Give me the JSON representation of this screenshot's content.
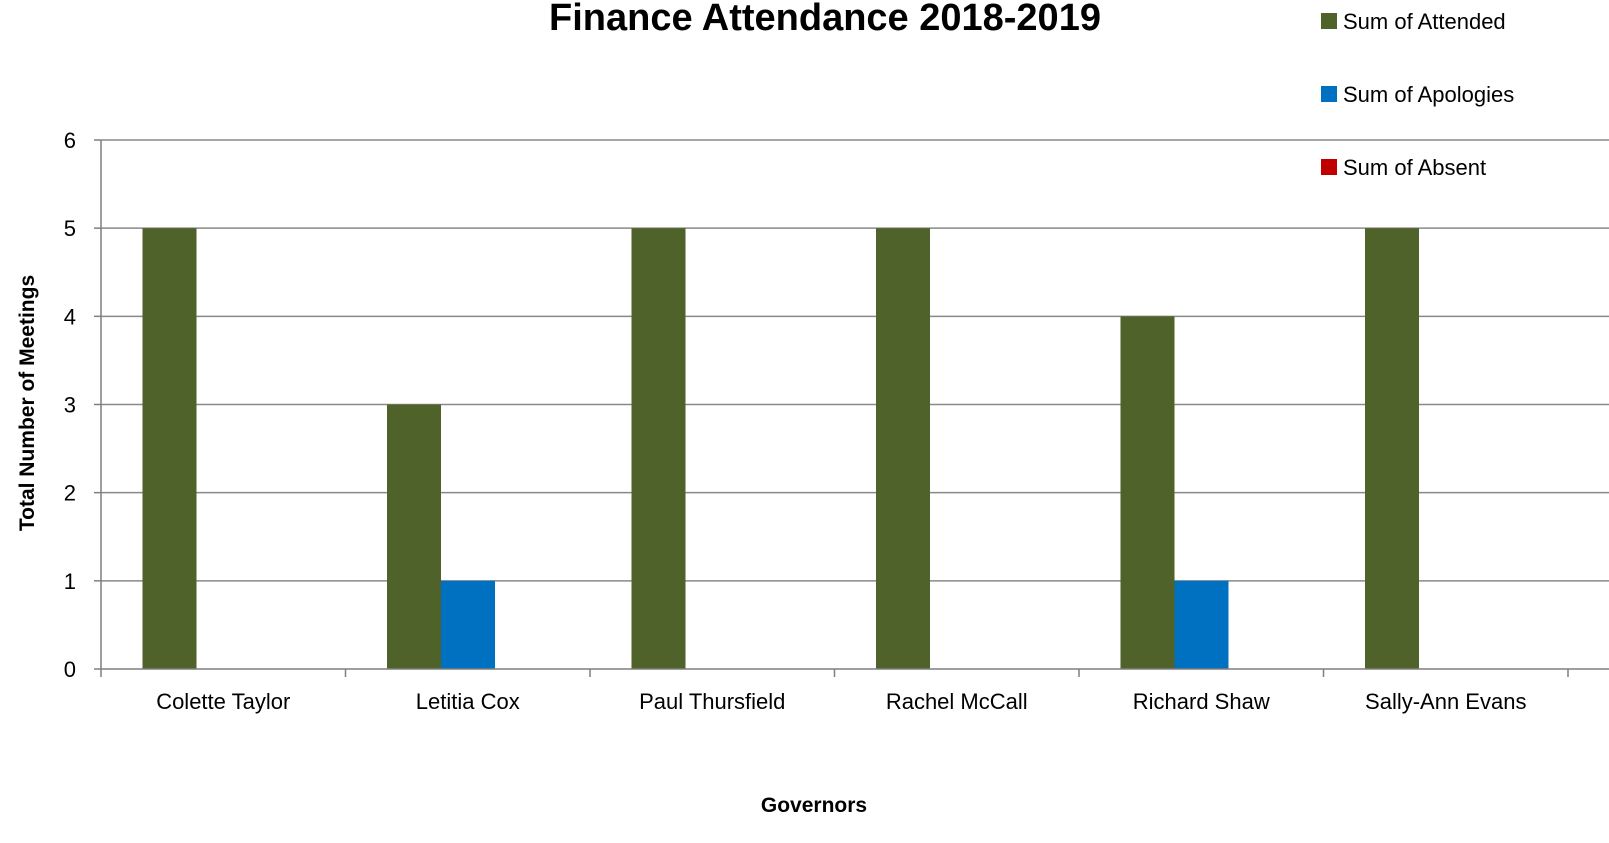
{
  "chart_data": {
    "type": "bar",
    "title": "Finance Attendance 2018-2019",
    "xlabel": "Governors",
    "ylabel": "Total Number of Meetings",
    "categories": [
      "Colette Taylor",
      "Letitia Cox",
      "Paul Thursfield",
      "Rachel McCall",
      "Richard Shaw",
      "Sally-Ann Evans"
    ],
    "series": [
      {
        "name": "Sum of Attended",
        "values": [
          5,
          3,
          5,
          5,
          4,
          5
        ],
        "color": "#4f622a"
      },
      {
        "name": "Sum of Apologies",
        "values": [
          0,
          1,
          0,
          0,
          1,
          0
        ],
        "color": "#0070c0"
      },
      {
        "name": "Sum of Absent",
        "values": [
          0,
          0,
          0,
          0,
          0,
          0
        ],
        "color": "#c00000"
      }
    ],
    "ylim": [
      0,
      6
    ],
    "yticks": [
      "0",
      "1",
      "2",
      "3",
      "4",
      "5",
      "6"
    ],
    "grid": true,
    "legend": "top-right",
    "gridline_color": "#898989",
    "axis_color": "#7f7f7f"
  }
}
